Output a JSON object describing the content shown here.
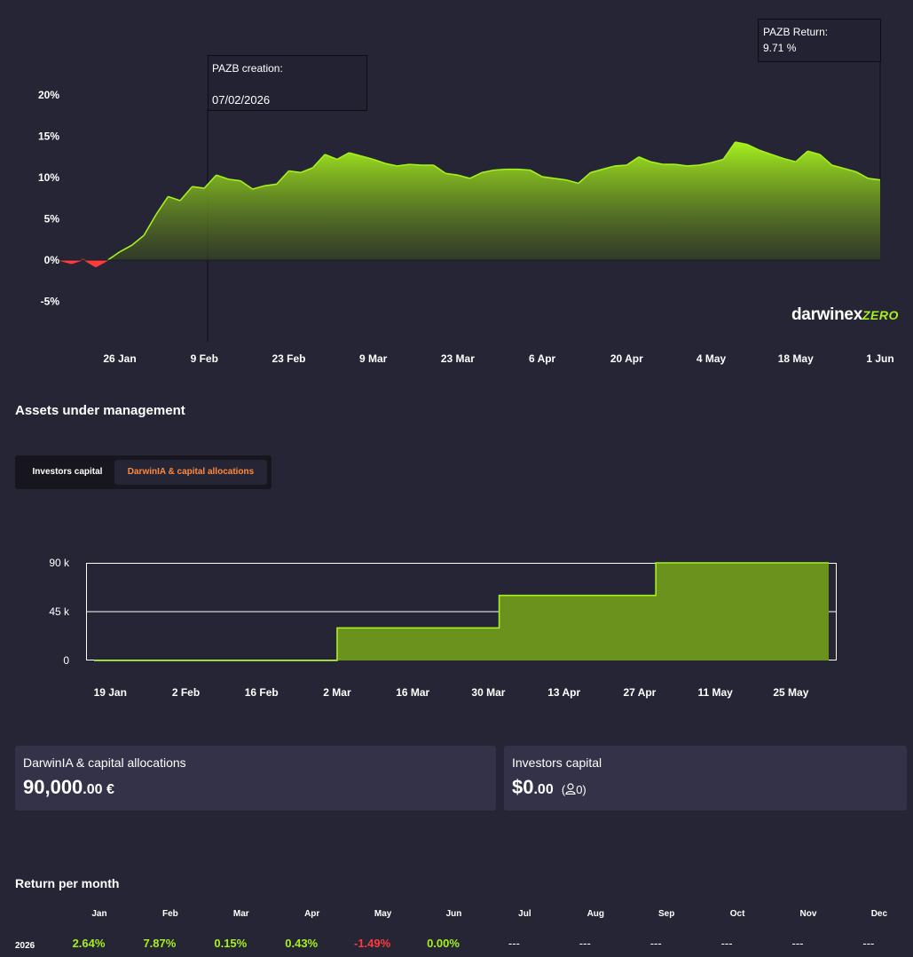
{
  "return_chart": {
    "annotation_creation_label": "PAZB creation:",
    "annotation_creation_date": "07/02/2026",
    "annotation_return_label": "PAZB Return:",
    "annotation_return_value": "9.71 %",
    "logo_brand": "darwinex",
    "logo_suffix": "ZERO",
    "colors": {
      "positive": "#a6f01d",
      "negative": "#ff3b3b",
      "background": "#262536"
    }
  },
  "aum": {
    "title": "Assets under management",
    "tabs": [
      {
        "label": "Investors capital",
        "active": false
      },
      {
        "label": "DarwinIA & capital allocations",
        "active": true
      }
    ]
  },
  "cards": {
    "allocations": {
      "label": "DarwinIA & capital allocations",
      "value_main": "90,000",
      "value_decimal": ".00 €"
    },
    "investors": {
      "label": "Investors capital",
      "value_main": "$0",
      "value_decimal": ".00",
      "investor_count_prefix": "(",
      "investor_count": "0)"
    }
  },
  "return_per_month": {
    "title": "Return per month",
    "months": [
      "Jan",
      "Feb",
      "Mar",
      "Apr",
      "May",
      "Jun",
      "Jul",
      "Aug",
      "Sep",
      "Oct",
      "Nov",
      "Dec"
    ],
    "rows": [
      {
        "year": "2026",
        "values": [
          "2.64%",
          "7.87%",
          "0.15%",
          "0.43%",
          "-1.49%",
          "0.00%",
          "---",
          "---",
          "---",
          "---",
          "---",
          "---"
        ]
      }
    ],
    "colors": {
      "positive": "#a6f01d",
      "negative": "#ff3b3b",
      "empty": "#ffffff"
    }
  },
  "chart_data": [
    {
      "type": "area",
      "title": "",
      "xlabel": "",
      "ylabel": "",
      "ylim": [
        -8,
        23
      ],
      "y_ticks": [
        "20%",
        "15%",
        "10%",
        "5%",
        "0%",
        "-5%"
      ],
      "x_ticks": [
        "26 Jan",
        "9 Feb",
        "23 Feb",
        "9 Mar",
        "23 Mar",
        "6 Apr",
        "20 Apr",
        "4 May",
        "18 May",
        "1 Jun"
      ],
      "x_tick_dates": [
        "2026-01-26",
        "2026-02-09",
        "2026-02-23",
        "2026-03-09",
        "2026-03-23",
        "2026-04-06",
        "2026-04-20",
        "2026-05-04",
        "2026-05-18",
        "2026-06-01"
      ],
      "grid": false,
      "series": [
        {
          "x": [
            "2026-01-16",
            "2026-01-18",
            "2026-01-20",
            "2026-01-22",
            "2026-01-24",
            "2026-01-26",
            "2026-01-28",
            "2026-01-30",
            "2026-02-01",
            "2026-02-03",
            "2026-02-05",
            "2026-02-07",
            "2026-02-09",
            "2026-02-11",
            "2026-02-13",
            "2026-02-15",
            "2026-02-17",
            "2026-02-19",
            "2026-02-21",
            "2026-02-23",
            "2026-02-25",
            "2026-02-27",
            "2026-03-01",
            "2026-03-03",
            "2026-03-05",
            "2026-03-07",
            "2026-03-09",
            "2026-03-11",
            "2026-03-13",
            "2026-03-15",
            "2026-03-17",
            "2026-03-19",
            "2026-03-21",
            "2026-03-23",
            "2026-03-25",
            "2026-03-27",
            "2026-03-29",
            "2026-03-31",
            "2026-04-02",
            "2026-04-04",
            "2026-04-06",
            "2026-04-08",
            "2026-04-10",
            "2026-04-12",
            "2026-04-14",
            "2026-04-16",
            "2026-04-18",
            "2026-04-20",
            "2026-04-22",
            "2026-04-24",
            "2026-04-26",
            "2026-04-28",
            "2026-04-30",
            "2026-05-02",
            "2026-05-04",
            "2026-05-06",
            "2026-05-08",
            "2026-05-10",
            "2026-05-12",
            "2026-05-14",
            "2026-05-16",
            "2026-05-18",
            "2026-05-20",
            "2026-05-22",
            "2026-05-24",
            "2026-05-26",
            "2026-05-28",
            "2026-05-30",
            "2026-06-01"
          ],
          "values": [
            0.0,
            -0.4,
            0.1,
            -0.8,
            0.0,
            1.0,
            1.8,
            3.0,
            5.5,
            7.7,
            7.2,
            8.9,
            8.7,
            10.3,
            9.8,
            9.6,
            8.6,
            9.0,
            9.2,
            10.8,
            10.6,
            11.2,
            12.8,
            12.2,
            13.0,
            12.6,
            12.2,
            11.7,
            11.4,
            11.6,
            11.5,
            11.5,
            10.5,
            10.3,
            9.9,
            10.6,
            10.9,
            11.0,
            11.0,
            10.9,
            10.1,
            9.9,
            9.7,
            9.3,
            10.6,
            11.0,
            11.4,
            11.5,
            12.5,
            11.9,
            11.6,
            11.6,
            11.4,
            11.5,
            11.8,
            12.2,
            14.3,
            14.0,
            13.3,
            12.8,
            12.3,
            11.9,
            13.2,
            12.8,
            11.5,
            11.1,
            10.7,
            9.9,
            9.71
          ]
        }
      ]
    },
    {
      "type": "area",
      "title": "",
      "xlabel": "",
      "ylabel": "",
      "ylim": [
        0,
        90000
      ],
      "y_ticks": [
        "90 k",
        "45 k",
        "0"
      ],
      "x_ticks": [
        "19 Jan",
        "2 Feb",
        "16 Feb",
        "2 Mar",
        "16 Mar",
        "30 Mar",
        "13 Apr",
        "27 Apr",
        "11 May",
        "25 May"
      ],
      "x_tick_dates": [
        "2026-01-19",
        "2026-02-02",
        "2026-02-16",
        "2026-03-02",
        "2026-03-16",
        "2026-03-30",
        "2026-04-13",
        "2026-04-27",
        "2026-05-11",
        "2026-05-25"
      ],
      "grid": true,
      "colors": {
        "fill": "#6b921c",
        "line": "#a6f01d"
      },
      "series": [
        {
          "x": [
            "2026-01-16",
            "2026-03-02",
            "2026-03-02",
            "2026-04-01",
            "2026-04-01",
            "2026-04-30",
            "2026-04-30",
            "2026-06-01"
          ],
          "values": [
            0,
            0,
            30000,
            30000,
            60000,
            60000,
            90000,
            90000
          ]
        }
      ]
    }
  ]
}
